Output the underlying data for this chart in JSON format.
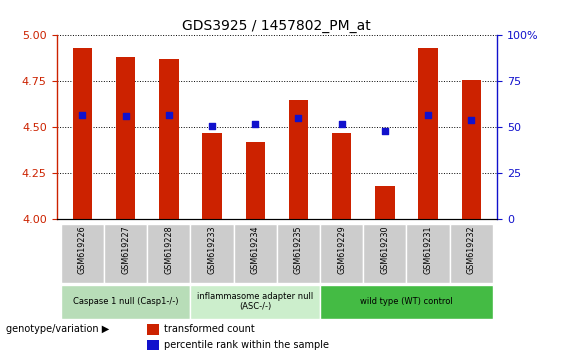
{
  "title": "GDS3925 / 1457802_PM_at",
  "samples": [
    "GSM619226",
    "GSM619227",
    "GSM619228",
    "GSM619233",
    "GSM619234",
    "GSM619235",
    "GSM619229",
    "GSM619230",
    "GSM619231",
    "GSM619232"
  ],
  "bar_values": [
    4.93,
    4.88,
    4.87,
    4.47,
    4.42,
    4.65,
    4.47,
    4.18,
    4.93,
    4.76
  ],
  "dot_values": [
    4.57,
    4.56,
    4.57,
    4.51,
    4.52,
    4.55,
    4.52,
    4.48,
    4.57,
    4.54
  ],
  "ylim": [
    4.0,
    5.0
  ],
  "yticks": [
    4.0,
    4.25,
    4.5,
    4.75,
    5.0
  ],
  "right_ytick_labels": [
    "0",
    "25",
    "50",
    "75",
    "100%"
  ],
  "bar_color": "#cc2200",
  "dot_color": "#1111cc",
  "groups": [
    {
      "label": "Caspase 1 null (Casp1-/-)",
      "start": 0,
      "end": 3,
      "color": "#b8ddb8"
    },
    {
      "label": "inflammasome adapter null\n(ASC-/-)",
      "start": 3,
      "end": 6,
      "color": "#cceecc"
    },
    {
      "label": "wild type (WT) control",
      "start": 6,
      "end": 10,
      "color": "#44bb44"
    }
  ],
  "tick_bg_color": "#cccccc",
  "legend_red_label": "transformed count",
  "legend_blue_label": "percentile rank within the sample",
  "genotype_label": "genotype/variation"
}
